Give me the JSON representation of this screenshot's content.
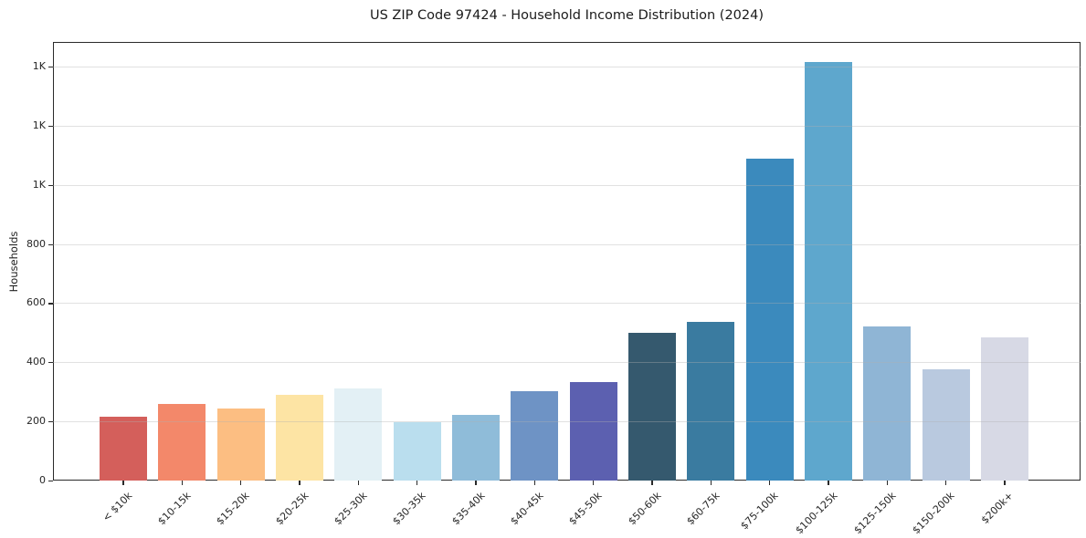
{
  "chart_data": {
    "type": "bar",
    "title": "US ZIP Code 97424 - Household Income Distribution (2024)",
    "xlabel": "",
    "ylabel": "Households",
    "categories": [
      "< $10k",
      "$10-15k",
      "$15-20k",
      "$20-25k",
      "$25-30k",
      "$30-35k",
      "$35-40k",
      "$40-45k",
      "$45-50k",
      "$50-60k",
      "$60-75k",
      "$75-100k",
      "$100-125k",
      "$125-150k",
      "$150-200k",
      "$200k+"
    ],
    "values": [
      217,
      258,
      244,
      289,
      312,
      198,
      222,
      301,
      334,
      500,
      538,
      1089,
      1414,
      521,
      377,
      484
    ],
    "bar_colors": [
      "#d45f5b",
      "#f3886a",
      "#fcbe82",
      "#fde4a4",
      "#e3f0f5",
      "#badeee",
      "#8fbcd9",
      "#6e93c5",
      "#5c60b0",
      "#35596e",
      "#3a7ba0",
      "#3b8abd",
      "#5ea7cd",
      "#8fb5d5",
      "#b9c9df",
      "#d7d9e5"
    ],
    "y_ticks": [
      {
        "value": 0,
        "label": "0"
      },
      {
        "value": 200,
        "label": "200"
      },
      {
        "value": 400,
        "label": "400"
      },
      {
        "value": 600,
        "label": "600"
      },
      {
        "value": 800,
        "label": "800"
      },
      {
        "value": 1000,
        "label": "1K"
      },
      {
        "value": 1200,
        "label": "1K"
      },
      {
        "value": 1400,
        "label": "1K"
      }
    ],
    "ylim": [
      0,
      1483
    ],
    "grid": "horizontal",
    "x_tick_rotation": 45,
    "legend": "none",
    "colors": {
      "background": "#ffffff",
      "spine": "#2a2a2a",
      "gridline": "#e9e9e9",
      "text": "#262626"
    }
  }
}
